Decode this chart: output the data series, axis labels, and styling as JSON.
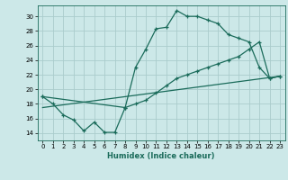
{
  "xlabel": "Humidex (Indice chaleur)",
  "bg_color": "#cce8e8",
  "grid_color": "#aacccc",
  "line_color": "#1a6b5a",
  "xlim": [
    -0.5,
    23.5
  ],
  "ylim": [
    13.0,
    31.5
  ],
  "xticks": [
    0,
    1,
    2,
    3,
    4,
    5,
    6,
    7,
    8,
    9,
    10,
    11,
    12,
    13,
    14,
    15,
    16,
    17,
    18,
    19,
    20,
    21,
    22,
    23
  ],
  "yticks": [
    14,
    16,
    18,
    20,
    22,
    24,
    26,
    28,
    30
  ],
  "line1_x": [
    0,
    1,
    2,
    3,
    4,
    5,
    6,
    7,
    8,
    9,
    10,
    11,
    12,
    13,
    14,
    15,
    16,
    17,
    18,
    19,
    20,
    21,
    22,
    23
  ],
  "line1_y": [
    19,
    18,
    16.5,
    15.8,
    14.3,
    15.5,
    14.1,
    14.1,
    17.5,
    23.0,
    25.5,
    28.3,
    28.5,
    30.8,
    30.0,
    30.0,
    29.5,
    29.0,
    27.5,
    27.0,
    26.5,
    23.0,
    21.5,
    21.8
  ],
  "line2_x": [
    0,
    8,
    9,
    10,
    11,
    12,
    13,
    14,
    15,
    16,
    17,
    18,
    19,
    20,
    21,
    22,
    23
  ],
  "line2_y": [
    19,
    17.5,
    18.0,
    18.5,
    19.5,
    20.5,
    21.5,
    22.0,
    22.5,
    23.0,
    23.5,
    24.0,
    24.5,
    25.5,
    26.5,
    21.5,
    21.8
  ],
  "line3_x": [
    0,
    23
  ],
  "line3_y": [
    17.5,
    21.8
  ]
}
